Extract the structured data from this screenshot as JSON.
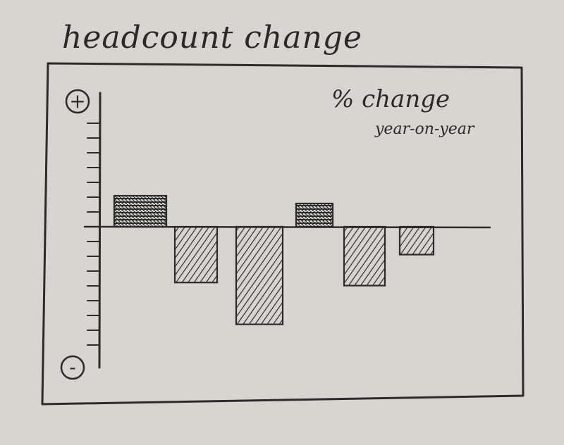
{
  "title": "headcount change",
  "chart_data": {
    "type": "bar",
    "title": "headcount change",
    "annotation_line1": "% change",
    "annotation_line2": "year-on-year",
    "ylabel_top": "+",
    "ylabel_bottom": "-",
    "categories": [
      "",
      "",
      "",
      "",
      "",
      ""
    ],
    "values": [
      2,
      -3.6,
      -6.3,
      1.5,
      -3.8,
      -1.8
    ],
    "ylim": [
      -9,
      8.5
    ],
    "grid": false,
    "legend": "none"
  },
  "colors": {
    "ink": "#2b2b2b",
    "paper": "#d8d5d0"
  }
}
